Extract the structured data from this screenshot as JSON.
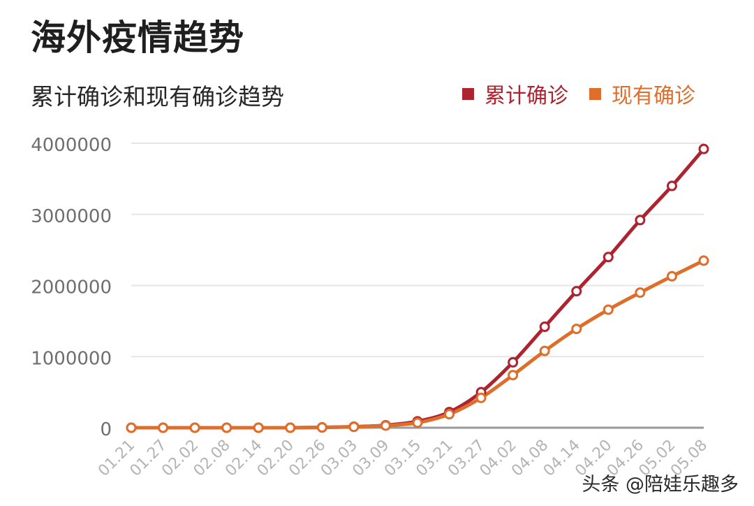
{
  "header": {
    "title": "海外疫情趋势",
    "subtitle": "累计确诊和现有确诊趋势"
  },
  "watermark": "头条 @陪娃乐趣多",
  "chart_data": {
    "type": "line",
    "title": "累计确诊和现有确诊趋势",
    "xlabel": "",
    "ylabel": "",
    "ylim": [
      0,
      4000000
    ],
    "yticks": [
      0,
      1000000,
      2000000,
      3000000,
      4000000
    ],
    "ytick_labels": [
      "0",
      "1000000",
      "2000000",
      "3000000",
      "4000000"
    ],
    "grid": true,
    "legend_position": "top-right",
    "categories": [
      "01.21",
      "01.27",
      "02.02",
      "02.08",
      "02.14",
      "02.20",
      "02.26",
      "03.03",
      "03.09",
      "03.15",
      "03.21",
      "03.27",
      "04.02",
      "04.08",
      "04.14",
      "04.20",
      "04.26",
      "05.02",
      "05.08"
    ],
    "series": [
      {
        "name": "累计确诊",
        "color": "#ad2330",
        "values": [
          0,
          0,
          0,
          0,
          0,
          0,
          5000,
          15000,
          35000,
          90000,
          220000,
          500000,
          920000,
          1420000,
          1920000,
          2400000,
          2920000,
          3400000,
          3920000
        ]
      },
      {
        "name": "现有确诊",
        "color": "#de6e2a",
        "values": [
          0,
          0,
          0,
          0,
          0,
          0,
          4000,
          12000,
          30000,
          70000,
          190000,
          420000,
          740000,
          1080000,
          1390000,
          1660000,
          1900000,
          2130000,
          2350000
        ]
      }
    ]
  }
}
